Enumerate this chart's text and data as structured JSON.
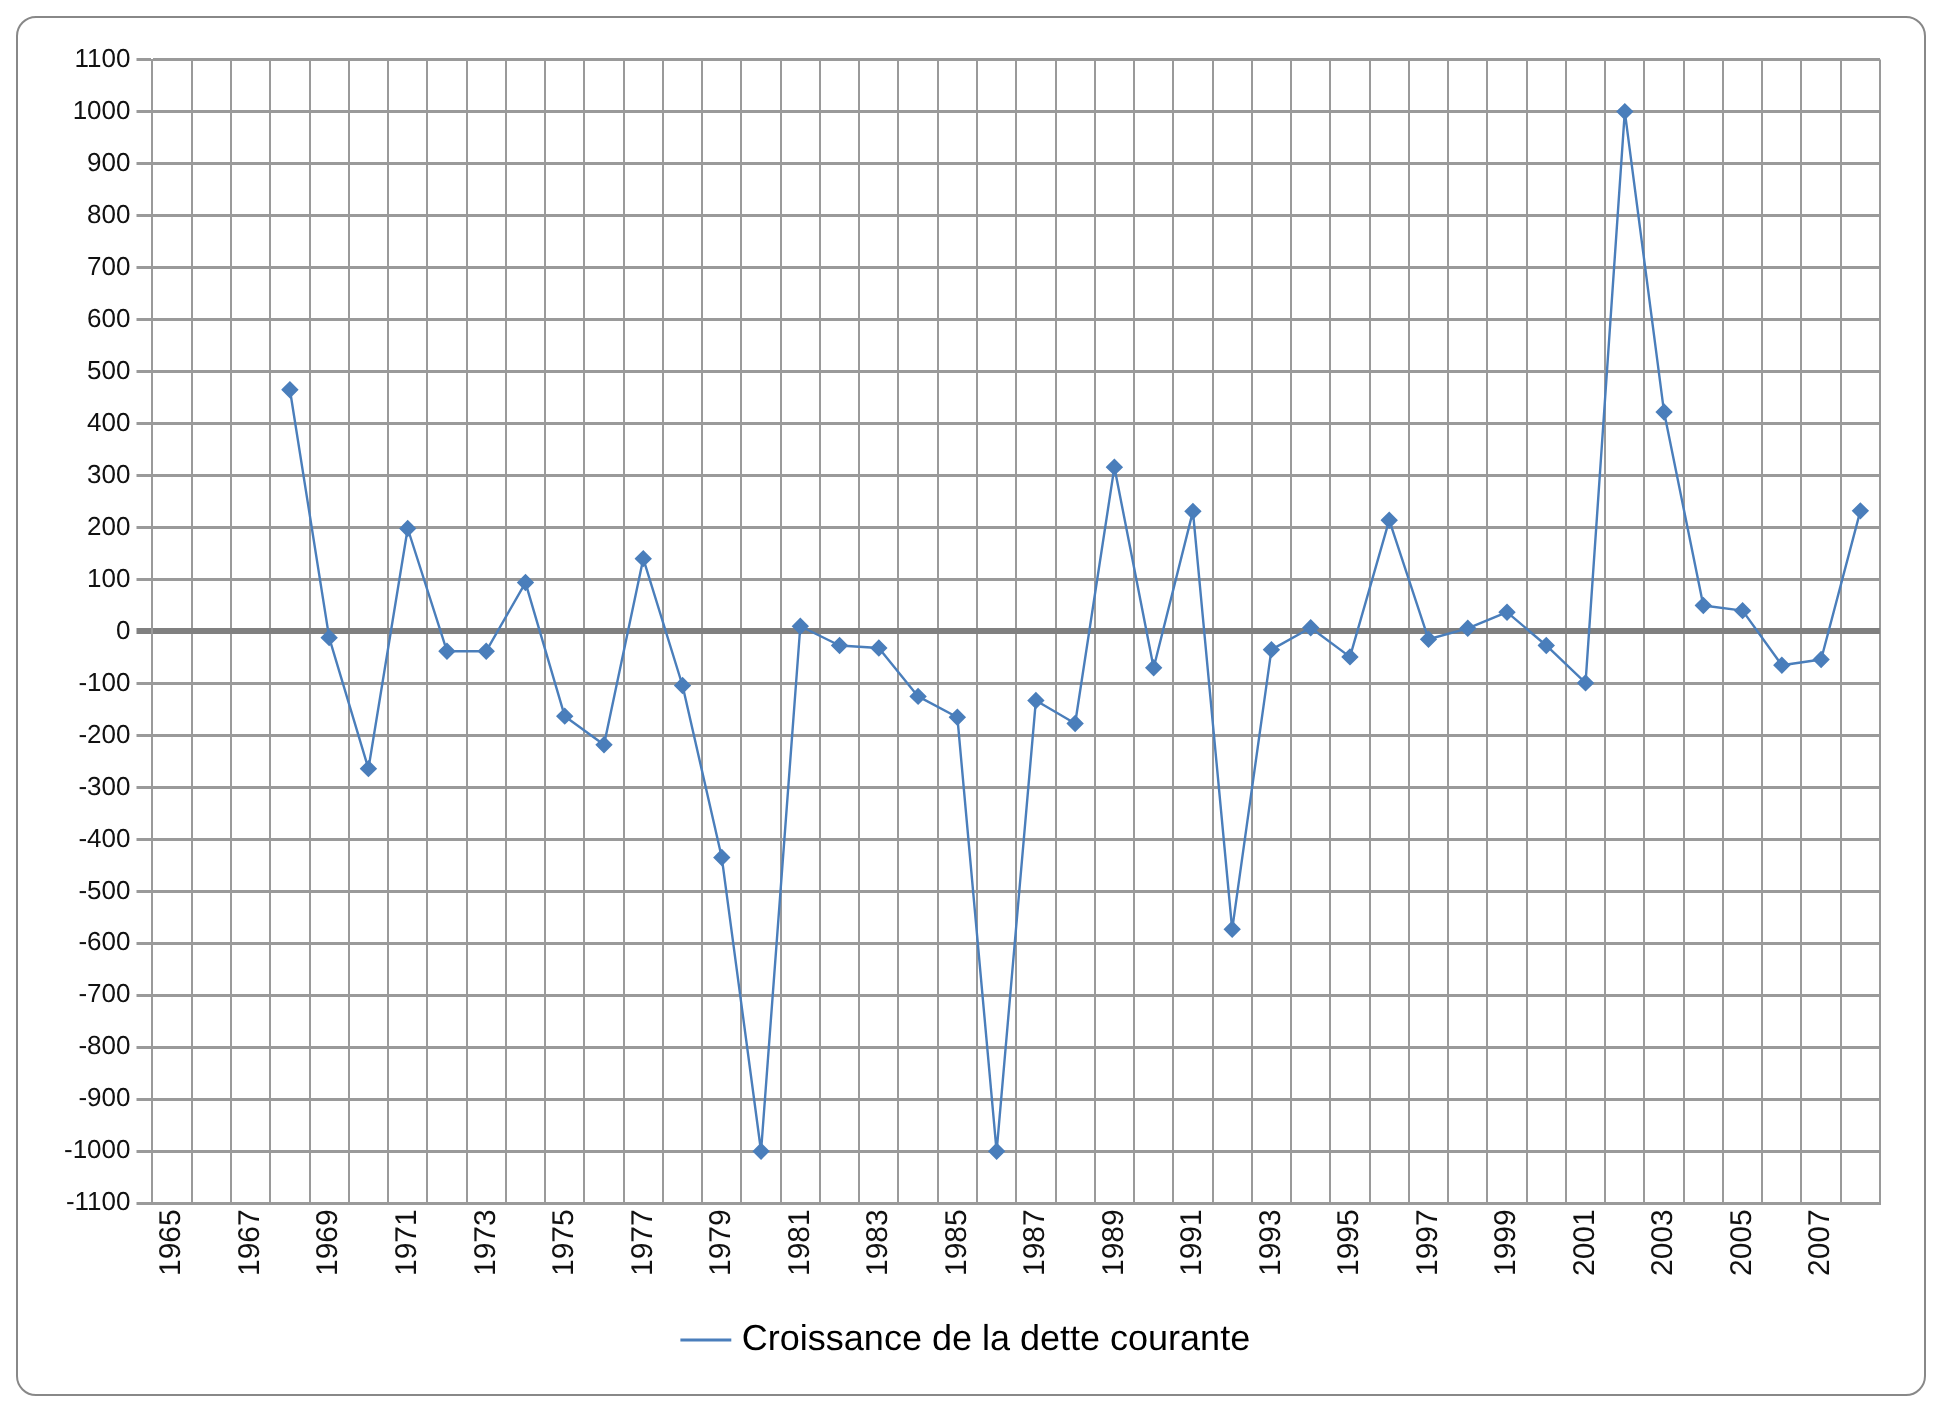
{
  "chart_data": {
    "type": "line",
    "categories": [
      "1965",
      null,
      "1967",
      null,
      "1969",
      null,
      "1971",
      null,
      "1973",
      null,
      "1975",
      null,
      "1977",
      null,
      "1979",
      null,
      "1981",
      null,
      "1983",
      null,
      "1985",
      null,
      "1987",
      null,
      "1989",
      null,
      "1991",
      null,
      "1993",
      null,
      "1995",
      null,
      "1997",
      null,
      "1999",
      null,
      "2001",
      null,
      "2003",
      null,
      "2005",
      null,
      "2007",
      null
    ],
    "series": [
      {
        "name": "Croissance de la dette courante",
        "color": "#4a7ebb",
        "values": [
          null,
          null,
          null,
          465,
          -12,
          -264,
          198,
          -38,
          -38,
          94,
          -163,
          -218,
          140,
          -104,
          -435,
          -1000,
          10,
          -27,
          -32,
          -125,
          -165,
          -1000,
          -133,
          -177,
          316,
          -70,
          231,
          -573,
          -35,
          7,
          -49,
          214,
          -15,
          6,
          37,
          -27,
          -99,
          1000,
          422,
          50,
          40,
          -65,
          -54,
          232
        ]
      }
    ],
    "ylim": [
      -1100,
      1100
    ],
    "yticks": [
      -1100,
      -1000,
      -900,
      -800,
      -700,
      -600,
      -500,
      -400,
      -300,
      -200,
      -100,
      0,
      100,
      200,
      300,
      400,
      500,
      600,
      700,
      800,
      900,
      1000,
      1100
    ],
    "grid": true,
    "legend": "bottom",
    "marker": "diamond",
    "line_style": "solid"
  }
}
